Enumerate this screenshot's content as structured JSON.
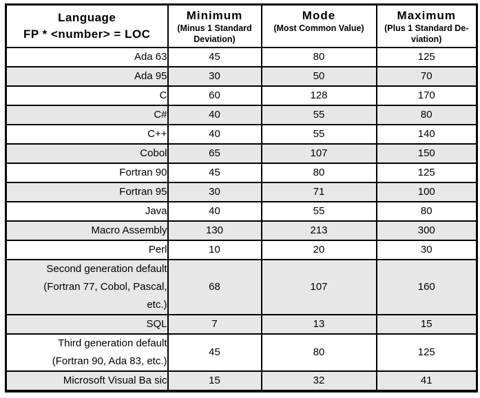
{
  "colors": {
    "page_background": "#ffffff",
    "border": "#000000",
    "shaded_row": "#e7e7e7",
    "text": "#000000"
  },
  "table": {
    "language_header": {
      "line1": "Language",
      "line2": "FP * <number> = LOC"
    },
    "value_headers": [
      {
        "title": "Minimum",
        "subtitle": "(Minus 1 Standard\nDeviation)"
      },
      {
        "title": "Mode",
        "subtitle": "(Most Common Value)"
      },
      {
        "title": "Maximum",
        "subtitle": "(Plus 1 Standard De-\nviation)"
      }
    ],
    "rows": [
      {
        "language": "Ada 63",
        "minimum": "45",
        "mode": "80",
        "maximum": "125",
        "shaded": false
      },
      {
        "language": "Ada 95",
        "minimum": "30",
        "mode": "50",
        "maximum": "70",
        "shaded": true
      },
      {
        "language": "C",
        "minimum": "60",
        "mode": "128",
        "maximum": "170",
        "shaded": false
      },
      {
        "language": "C#",
        "minimum": "40",
        "mode": "55",
        "maximum": "80",
        "shaded": true
      },
      {
        "language": "C++",
        "minimum": "40",
        "mode": "55",
        "maximum": "140",
        "shaded": false
      },
      {
        "language": "Cobol",
        "minimum": "65",
        "mode": "107",
        "maximum": "150",
        "shaded": true
      },
      {
        "language": "Fortran 90",
        "minimum": "45",
        "mode": "80",
        "maximum": "125",
        "shaded": false
      },
      {
        "language": "Fortran 95",
        "minimum": "30",
        "mode": "71",
        "maximum": "100",
        "shaded": true
      },
      {
        "language": "Java",
        "minimum": "40",
        "mode": "55",
        "maximum": "80",
        "shaded": false
      },
      {
        "language": "Macro Assembly",
        "minimum": "130",
        "mode": "213",
        "maximum": "300",
        "shaded": true
      },
      {
        "language": "Perl",
        "minimum": "10",
        "mode": "20",
        "maximum": "30",
        "shaded": false
      },
      {
        "language": "Second generation default\n(Fortran 77, Cobol, Pascal,\netc.)",
        "minimum": "68",
        "mode": "107",
        "maximum": "160",
        "shaded": true,
        "tall": 3
      },
      {
        "language": "SQL",
        "minimum": "7",
        "mode": "13",
        "maximum": "15",
        "shaded": true
      },
      {
        "language": "Third generation default\n(Fortran 90, Ada 83, etc.)",
        "minimum": "45",
        "mode": "80",
        "maximum": "125",
        "shaded": false,
        "tall": 2
      },
      {
        "language": "Microsoft Visual Ba sic",
        "minimum": "15",
        "mode": "32",
        "maximum": "41",
        "shaded": true
      }
    ]
  },
  "chart_data": {
    "type": "table",
    "title": "Language FP * <number> = LOC",
    "columns": [
      "Language (FP * <number> = LOC)",
      "Minimum (Minus 1 Standard Deviation)",
      "Mode (Most Common Value)",
      "Maximum (Plus 1 Standard Deviation)"
    ],
    "rows": [
      [
        "Ada 63",
        45,
        80,
        125
      ],
      [
        "Ada 95",
        30,
        50,
        70
      ],
      [
        "C",
        60,
        128,
        170
      ],
      [
        "C#",
        40,
        55,
        80
      ],
      [
        "C++",
        40,
        55,
        140
      ],
      [
        "Cobol",
        65,
        107,
        150
      ],
      [
        "Fortran 90",
        45,
        80,
        125
      ],
      [
        "Fortran 95",
        30,
        71,
        100
      ],
      [
        "Java",
        40,
        55,
        80
      ],
      [
        "Macro Assembly",
        130,
        213,
        300
      ],
      [
        "Perl",
        10,
        20,
        30
      ],
      [
        "Second generation default (Fortran 77, Cobol, Pascal, etc.)",
        68,
        107,
        160
      ],
      [
        "SQL",
        7,
        13,
        15
      ],
      [
        "Third generation default (Fortran 90, Ada 83, etc.)",
        45,
        80,
        125
      ],
      [
        "Microsoft Visual Basic",
        15,
        32,
        41
      ]
    ]
  }
}
